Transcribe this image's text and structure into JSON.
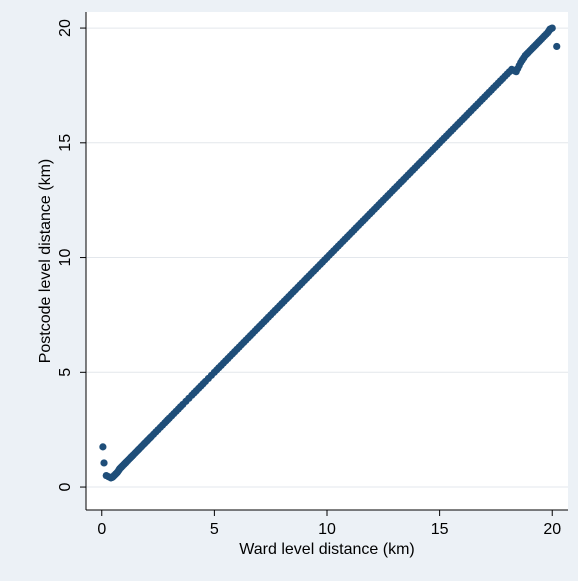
{
  "chart_data": {
    "type": "scatter",
    "title": "",
    "xlabel": "Ward level distance (km)",
    "ylabel": "Postcode level distance (km)",
    "xlim": [
      -0.7,
      20.7
    ],
    "ylim": [
      -1,
      20.7
    ],
    "xticks": [
      "0",
      "5",
      "10",
      "15",
      "20"
    ],
    "yticks": [
      "0",
      "5",
      "10",
      "15",
      "20"
    ],
    "grid": "horizontal",
    "legend": "none",
    "colors": {
      "background": "#ECF1F6",
      "plot_area": "#FFFFFF",
      "marker": "#1F4E79",
      "grid": "#E3E7EC"
    },
    "series": [
      {
        "x": [
          0.05,
          0.1,
          0.2,
          0.3,
          0.4,
          0.45,
          0.5,
          0.6,
          0.7,
          0.8,
          0.9,
          1.0,
          1.1,
          1.25,
          1.4,
          1.6,
          1.8,
          2.0,
          2.2,
          2.5,
          2.8,
          3.0,
          3.3,
          3.6,
          4.0,
          4.3,
          4.6,
          5.0,
          5.3,
          5.6,
          5.9,
          6.2,
          6.5,
          6.8,
          7.1,
          7.4,
          7.7,
          8.0,
          8.3,
          8.6,
          8.9,
          9.2,
          9.5,
          9.8,
          10.1,
          10.4,
          10.7,
          11.0,
          11.3,
          11.6,
          11.9,
          12.2,
          12.5,
          12.8,
          13.1,
          13.4,
          13.7,
          14.0,
          14.3,
          14.6,
          14.9,
          15.2,
          15.5,
          15.8,
          16.1,
          16.4,
          16.7,
          17.0,
          17.3,
          17.6,
          17.9,
          18.2,
          18.4,
          18.6,
          18.8,
          19.0,
          19.2,
          19.4,
          19.6,
          19.8,
          19.9,
          20.0,
          20.2
        ],
        "y": [
          1.75,
          1.05,
          0.5,
          0.45,
          0.4,
          0.42,
          0.45,
          0.55,
          0.65,
          0.8,
          0.9,
          1.0,
          1.1,
          1.25,
          1.4,
          1.6,
          1.8,
          2.0,
          2.2,
          2.5,
          2.8,
          3.0,
          3.3,
          3.6,
          4.0,
          4.3,
          4.6,
          5.0,
          5.3,
          5.6,
          5.9,
          6.2,
          6.5,
          6.8,
          7.1,
          7.4,
          7.7,
          8.0,
          8.3,
          8.6,
          8.9,
          9.2,
          9.5,
          9.8,
          10.1,
          10.4,
          10.7,
          11.0,
          11.3,
          11.6,
          11.9,
          12.2,
          12.5,
          12.8,
          13.1,
          13.4,
          13.7,
          14.0,
          14.3,
          14.6,
          14.9,
          15.2,
          15.5,
          15.8,
          16.1,
          16.4,
          16.7,
          17.0,
          17.3,
          17.6,
          17.9,
          18.2,
          18.1,
          18.5,
          18.8,
          19.0,
          19.2,
          19.4,
          19.6,
          19.8,
          19.95,
          20.0,
          19.2
        ]
      }
    ]
  }
}
